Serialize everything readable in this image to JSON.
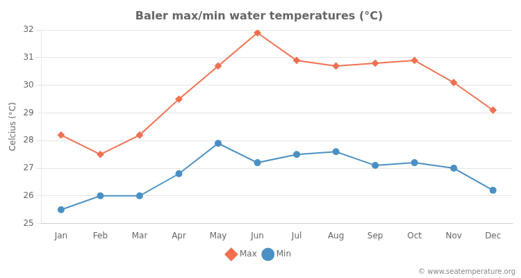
{
  "chart_data": {
    "type": "line",
    "title": "Baler max/min water temperatures (°C)",
    "ylabel": "Celcius (°C)",
    "categories": [
      "Jan",
      "Feb",
      "Mar",
      "Apr",
      "May",
      "Jun",
      "Jul",
      "Aug",
      "Sep",
      "Oct",
      "Nov",
      "Dec"
    ],
    "series": [
      {
        "name": "Max",
        "color": "#f07050",
        "marker": "diamond",
        "values": [
          28.2,
          27.5,
          28.2,
          29.5,
          30.7,
          31.9,
          30.9,
          30.7,
          30.8,
          30.9,
          30.1,
          29.1
        ]
      },
      {
        "name": "Min",
        "color": "#4a90c4",
        "marker": "circle",
        "values": [
          25.5,
          26.0,
          26.0,
          26.8,
          27.9,
          27.2,
          27.5,
          27.6,
          27.1,
          27.2,
          27.0,
          26.2
        ]
      }
    ],
    "ylim": [
      25,
      32
    ],
    "yticks": [
      25,
      26,
      27,
      28,
      29,
      30,
      31,
      32
    ],
    "grid": "y",
    "legend": "bottom",
    "annotations": [
      "© www.seatemperature.org"
    ]
  }
}
